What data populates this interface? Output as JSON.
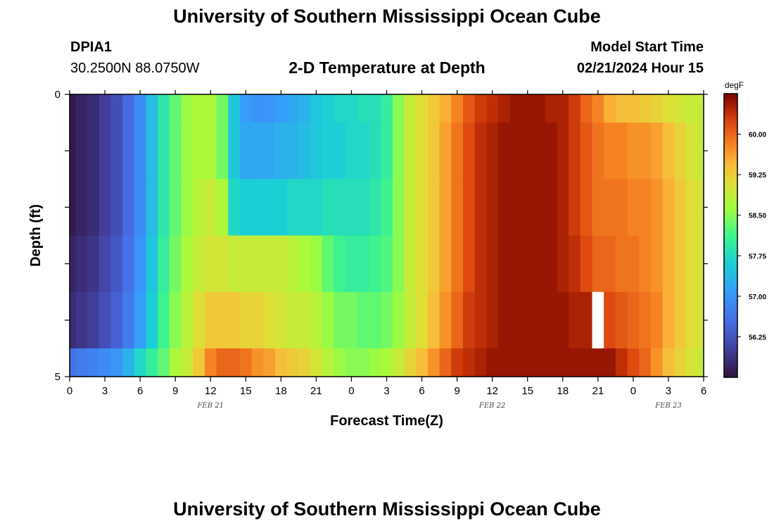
{
  "header": {
    "title": "University of Southern Mississippi Ocean Cube",
    "footer_title": "University of Southern Mississippi Ocean Cube",
    "station": "DPIA1",
    "coordinates": "30.2500N  88.0750W",
    "plot_title": "2-D Temperature at Depth",
    "model_start_label": "Model Start Time",
    "model_start_value": "02/21/2024 Hour 15"
  },
  "chart_data": {
    "type": "heatmap",
    "title": "2-D Temperature at Depth",
    "xlabel": "Forecast Time(Z)",
    "ylabel": "Depth (ft)",
    "units": "degF",
    "x_hours_range": [
      0,
      54
    ],
    "x_tick_labels": [
      "0",
      "3",
      "6",
      "9",
      "12",
      "15",
      "18",
      "21",
      "0",
      "3",
      "6",
      "9",
      "12",
      "15",
      "18",
      "21",
      "0",
      "3",
      "6"
    ],
    "x_tick_hours": [
      0,
      3,
      6,
      9,
      12,
      15,
      18,
      21,
      24,
      27,
      30,
      33,
      36,
      39,
      42,
      45,
      48,
      51,
      54
    ],
    "date_labels": [
      {
        "hour": 12,
        "text": "FEB 21"
      },
      {
        "hour": 36,
        "text": "FEB 22"
      },
      {
        "hour": 51,
        "text": "FEB 23"
      }
    ],
    "y_tick_labels": [
      "0",
      "5"
    ],
    "y_range": [
      0,
      5
    ],
    "colorbar": {
      "min": 55.5,
      "max": 60.75,
      "ticks": [
        56.25,
        57.0,
        57.75,
        58.5,
        59.25,
        60.0
      ],
      "tick_labels": [
        "56.25",
        "57.00",
        "57.75",
        "58.50",
        "59.25",
        "60.00"
      ]
    },
    "time_hours": [
      0,
      1,
      2,
      3,
      4,
      5,
      6,
      7,
      8,
      9,
      10,
      11,
      12,
      13,
      14,
      15,
      16,
      17,
      18,
      19,
      20,
      21,
      22,
      23,
      24,
      25,
      26,
      27,
      28,
      29,
      30,
      31,
      32,
      33,
      34,
      35,
      36,
      37,
      38,
      39,
      40,
      41,
      42,
      43,
      44,
      45,
      46,
      47,
      48,
      49,
      50,
      51,
      52,
      53,
      54
    ],
    "missing": [
      {
        "layer": 4,
        "hour": 45
      }
    ],
    "layers": [
      {
        "depth_range": [
          0,
          0.5
        ],
        "values": [
          55.6,
          55.7,
          55.8,
          56.0,
          56.2,
          56.5,
          56.9,
          57.4,
          57.9,
          58.3,
          58.6,
          58.7,
          58.7,
          58.4,
          57.5,
          57.1,
          57.0,
          57.0,
          57.1,
          57.2,
          57.3,
          57.5,
          57.6,
          57.7,
          57.7,
          57.8,
          57.8,
          58.0,
          58.5,
          58.9,
          59.1,
          59.3,
          59.5,
          59.8,
          60.1,
          60.3,
          60.4,
          60.5,
          60.6,
          60.6,
          60.6,
          60.5,
          60.5,
          60.3,
          60.0,
          59.8,
          59.5,
          59.4,
          59.4,
          59.3,
          59.2,
          59.1,
          59.0,
          58.9,
          58.9
        ]
      },
      {
        "depth_range": [
          0.5,
          1.5
        ],
        "values": [
          55.6,
          55.7,
          55.8,
          56.0,
          56.2,
          56.5,
          56.9,
          57.4,
          57.9,
          58.3,
          58.6,
          58.7,
          58.7,
          58.4,
          57.5,
          57.2,
          57.2,
          57.2,
          57.3,
          57.3,
          57.4,
          57.5,
          57.6,
          57.6,
          57.7,
          57.7,
          57.8,
          58.0,
          58.5,
          58.9,
          59.1,
          59.3,
          59.6,
          59.9,
          60.2,
          60.4,
          60.5,
          60.6,
          60.6,
          60.6,
          60.6,
          60.6,
          60.5,
          60.3,
          60.1,
          59.9,
          59.8,
          59.8,
          59.7,
          59.7,
          59.6,
          59.4,
          59.2,
          59.0,
          58.9
        ]
      },
      {
        "depth_range": [
          1.5,
          2.5
        ],
        "values": [
          55.6,
          55.7,
          55.8,
          56.0,
          56.2,
          56.5,
          56.9,
          57.4,
          57.9,
          58.3,
          58.6,
          58.8,
          58.9,
          58.7,
          57.7,
          57.6,
          57.6,
          57.6,
          57.6,
          57.7,
          57.7,
          57.7,
          57.8,
          57.8,
          57.8,
          57.8,
          57.9,
          58.1,
          58.5,
          58.9,
          59.1,
          59.3,
          59.6,
          59.9,
          60.2,
          60.4,
          60.5,
          60.6,
          60.6,
          60.6,
          60.6,
          60.6,
          60.5,
          60.3,
          60.1,
          59.9,
          59.9,
          59.9,
          59.8,
          59.8,
          59.7,
          59.5,
          59.3,
          59.1,
          59.0
        ]
      },
      {
        "depth_range": [
          2.5,
          3.5
        ],
        "values": [
          55.7,
          55.8,
          55.9,
          56.1,
          56.3,
          56.6,
          57.0,
          57.5,
          58.0,
          58.4,
          58.7,
          58.9,
          59.0,
          59.0,
          58.9,
          58.9,
          58.9,
          58.9,
          58.9,
          58.8,
          58.7,
          58.6,
          58.3,
          58.1,
          58.0,
          58.0,
          58.1,
          58.2,
          58.5,
          58.9,
          59.1,
          59.3,
          59.6,
          59.9,
          60.2,
          60.4,
          60.5,
          60.6,
          60.6,
          60.6,
          60.6,
          60.6,
          60.5,
          60.4,
          60.2,
          60.0,
          60.0,
          59.9,
          59.9,
          59.8,
          59.7,
          59.5,
          59.3,
          59.1,
          59.0
        ]
      },
      {
        "depth_range": [
          3.5,
          4.5
        ],
        "values": [
          55.8,
          55.9,
          56.0,
          56.2,
          56.4,
          56.7,
          57.1,
          57.6,
          58.1,
          58.5,
          58.8,
          59.1,
          59.3,
          59.3,
          59.3,
          59.2,
          59.2,
          59.1,
          59.0,
          58.9,
          58.9,
          58.8,
          58.6,
          58.4,
          58.4,
          58.3,
          58.3,
          58.4,
          58.6,
          58.9,
          59.1,
          59.4,
          59.7,
          60.0,
          60.3,
          60.4,
          60.5,
          60.6,
          60.6,
          60.6,
          60.6,
          60.6,
          60.6,
          60.5,
          60.5,
          60.4,
          60.2,
          60.1,
          60.0,
          59.9,
          59.8,
          59.5,
          59.3,
          59.1,
          59.0
        ]
      },
      {
        "depth_range": [
          4.5,
          5
        ],
        "values": [
          56.6,
          56.7,
          56.8,
          56.9,
          57.0,
          57.3,
          57.7,
          58.0,
          58.3,
          58.7,
          58.9,
          59.3,
          59.8,
          60.0,
          60.0,
          59.9,
          59.7,
          59.6,
          59.4,
          59.3,
          59.2,
          59.0,
          58.8,
          58.6,
          58.5,
          58.5,
          58.6,
          58.7,
          58.9,
          59.2,
          59.4,
          59.7,
          60.0,
          60.3,
          60.4,
          60.5,
          60.6,
          60.6,
          60.6,
          60.6,
          60.6,
          60.6,
          60.6,
          60.6,
          60.6,
          60.6,
          60.6,
          60.4,
          60.2,
          60.0,
          59.7,
          59.4,
          59.2,
          59.0,
          58.9
        ]
      }
    ]
  }
}
